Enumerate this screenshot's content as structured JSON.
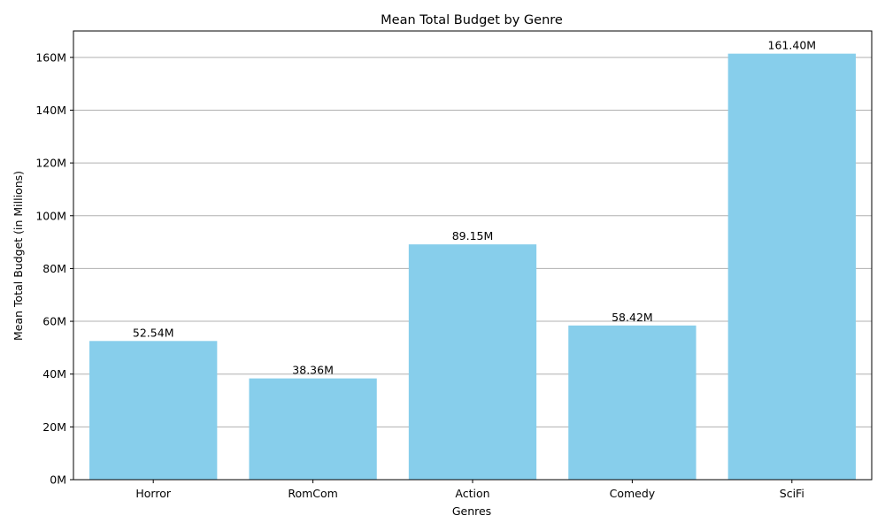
{
  "chart_data": {
    "type": "bar",
    "title": "Mean Total Budget by Genre",
    "xlabel": "Genres",
    "ylabel": "Mean Total Budget (in Millions)",
    "categories": [
      "Horror",
      "RomCom",
      "Action",
      "Comedy",
      "SciFi"
    ],
    "values": [
      52.54,
      38.36,
      89.15,
      58.42,
      161.4
    ],
    "data_labels": [
      "52.54M",
      "38.36M",
      "89.15M",
      "58.42M",
      "161.40M"
    ],
    "ylim": [
      0,
      170
    ],
    "yticks": [
      0,
      20,
      40,
      60,
      80,
      100,
      120,
      140,
      160
    ],
    "ytick_labels": [
      "0M",
      "20M",
      "40M",
      "60M",
      "80M",
      "100M",
      "120M",
      "140M",
      "160M"
    ],
    "grid": "horizontal",
    "bar_color": "#87CEEB"
  }
}
